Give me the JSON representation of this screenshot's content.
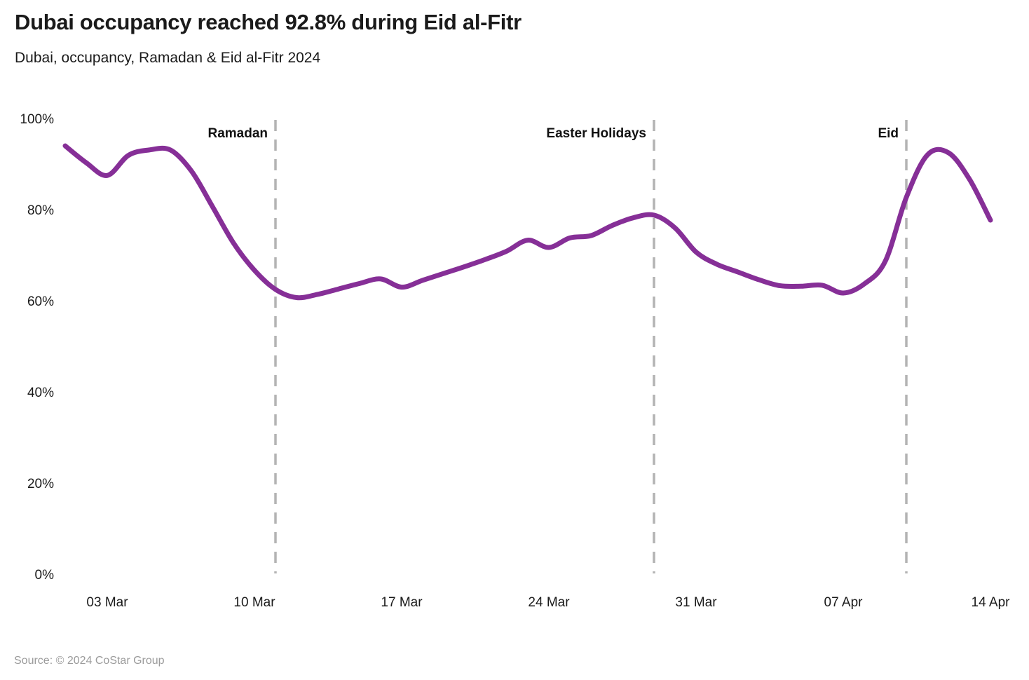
{
  "header": {
    "title": "Dubai occupancy reached 92.8% during Eid al-Fitr",
    "subtitle": "Dubai, occupancy, Ramadan & Eid al-Fitr 2024"
  },
  "footer": {
    "source": "Source: © 2024 CoStar Group"
  },
  "chart_data": {
    "type": "line",
    "title": "Dubai occupancy reached 92.8% during Eid al-Fitr",
    "subtitle": "Dubai, occupancy, Ramadan & Eid al-Fitr 2024",
    "xlabel": "",
    "ylabel": "",
    "unit": "%",
    "ylim": [
      0,
      100
    ],
    "grid": false,
    "legend": "none",
    "line_color": "#862f97",
    "event_line_color": "#b3b3b3",
    "dates": [
      "01 Mar",
      "02 Mar",
      "03 Mar",
      "04 Mar",
      "05 Mar",
      "06 Mar",
      "07 Mar",
      "08 Mar",
      "09 Mar",
      "10 Mar",
      "11 Mar",
      "12 Mar",
      "13 Mar",
      "14 Mar",
      "15 Mar",
      "16 Mar",
      "17 Mar",
      "18 Mar",
      "19 Mar",
      "20 Mar",
      "21 Mar",
      "22 Mar",
      "23 Mar",
      "24 Mar",
      "25 Mar",
      "26 Mar",
      "27 Mar",
      "28 Mar",
      "29 Mar",
      "30 Mar",
      "31 Mar",
      "01 Apr",
      "02 Apr",
      "03 Apr",
      "04 Apr",
      "05 Apr",
      "06 Apr",
      "07 Apr",
      "08 Apr",
      "09 Apr",
      "10 Apr",
      "11 Apr",
      "12 Apr",
      "13 Apr",
      "14 Apr"
    ],
    "values": [
      94.3,
      90.6,
      87.8,
      92.2,
      93.4,
      93.4,
      88.8,
      81.0,
      73.0,
      67.0,
      62.8,
      61.0,
      61.7,
      62.9,
      64.1,
      65.1,
      63.3,
      64.8,
      66.3,
      67.8,
      69.4,
      71.2,
      73.6,
      72.0,
      74.1,
      74.6,
      76.8,
      78.5,
      79.1,
      76.3,
      71.0,
      68.3,
      66.6,
      64.9,
      63.6,
      63.5,
      63.7,
      62.0,
      64.0,
      69.0,
      83.0,
      92.3,
      92.8,
      87.0,
      78.0
    ],
    "y_ticks": [
      {
        "label": "0%",
        "value": 0
      },
      {
        "label": "20%",
        "value": 20
      },
      {
        "label": "40%",
        "value": 40
      },
      {
        "label": "60%",
        "value": 60
      },
      {
        "label": "80%",
        "value": 80
      },
      {
        "label": "100%",
        "value": 100
      }
    ],
    "x_ticks": [
      {
        "label": "03 Mar",
        "day_index": 2
      },
      {
        "label": "10 Mar",
        "day_index": 9
      },
      {
        "label": "17 Mar",
        "day_index": 16
      },
      {
        "label": "24 Mar",
        "day_index": 23
      },
      {
        "label": "31 Mar",
        "day_index": 30
      },
      {
        "label": "07 Apr",
        "day_index": 37
      },
      {
        "label": "14 Apr",
        "day_index": 44
      }
    ],
    "events": [
      {
        "label": "Ramadan",
        "date": "11 Mar",
        "day_index": 10
      },
      {
        "label": "Easter Holidays",
        "date": "29 Mar",
        "day_index": 28
      },
      {
        "label": "Eid",
        "date": "10 Apr",
        "day_index": 40
      }
    ]
  }
}
